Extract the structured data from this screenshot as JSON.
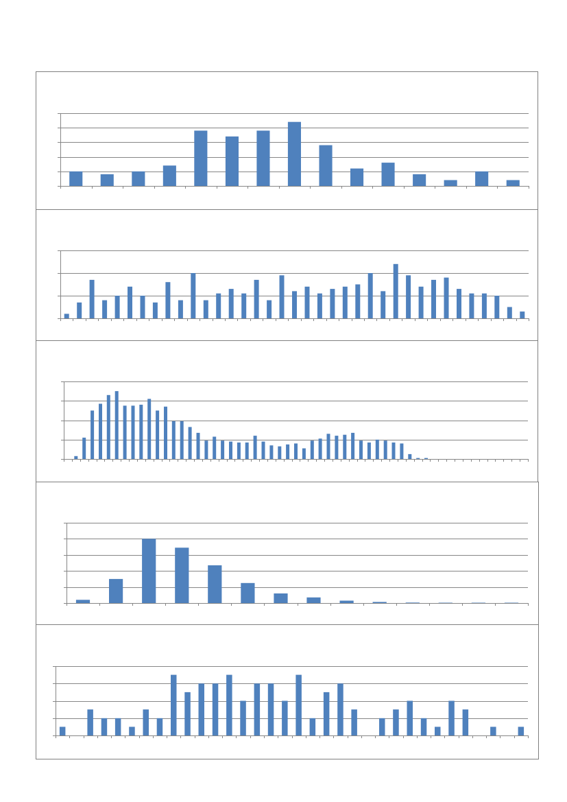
{
  "colors": {
    "bar": "#4f81bd",
    "grid": "#868686",
    "frame": "#7f7f7f",
    "background": "#ffffff"
  },
  "chart_data": [
    {
      "type": "bar",
      "title": "",
      "xlabel": "",
      "ylabel": "",
      "grid": true,
      "legend": "none",
      "tick_labels": "none",
      "ylim": [
        0,
        5
      ],
      "values": [
        1,
        0.8,
        1,
        1.4,
        3.8,
        3.4,
        3.8,
        4.4,
        2.8,
        1.2,
        1.6,
        0.8,
        0.4,
        1,
        0.4
      ]
    },
    {
      "type": "bar",
      "title": "",
      "xlabel": "",
      "ylabel": "",
      "grid": true,
      "legend": "none",
      "tick_labels": "none",
      "ylim": [
        0,
        3
      ],
      "values": [
        0.2,
        0.7,
        1.7,
        0.8,
        1,
        1.4,
        1,
        0.7,
        1.6,
        0.8,
        2,
        0.8,
        1.1,
        1.3,
        1.1,
        1.7,
        0.8,
        1.9,
        1.2,
        1.4,
        1.1,
        1.3,
        1.4,
        1.5,
        2,
        1.2,
        2.4,
        1.9,
        1.4,
        1.7,
        1.8,
        1.3,
        1.1,
        1.1,
        1,
        0.5,
        0.3
      ]
    },
    {
      "type": "bar",
      "title": "",
      "xlabel": "",
      "ylabel": "",
      "grid": true,
      "legend": "none",
      "tick_labels": "none",
      "ylim": [
        0,
        4
      ],
      "values": [
        0,
        0.15,
        1.1,
        2.5,
        2.85,
        3.3,
        3.5,
        2.75,
        2.75,
        2.8,
        3.1,
        2.5,
        2.7,
        1.95,
        1.95,
        1.65,
        1.35,
        0.95,
        1.15,
        0.95,
        0.9,
        0.85,
        0.85,
        1.2,
        0.9,
        0.7,
        0.65,
        0.75,
        0.8,
        0.55,
        0.95,
        1.05,
        1.3,
        1.2,
        1.25,
        1.35,
        0.95,
        0.85,
        1,
        0.95,
        0.85,
        0.8,
        0.25,
        0.05,
        0.05,
        0,
        0,
        0,
        0,
        0,
        0,
        0,
        0,
        0,
        0,
        0,
        0
      ]
    },
    {
      "type": "bar",
      "title": "",
      "xlabel": "",
      "ylabel": "",
      "grid": true,
      "legend": "none",
      "tick_labels": "none",
      "ylim": [
        0,
        5
      ],
      "values": [
        0.2,
        1.5,
        4,
        3.45,
        2.35,
        1.25,
        0.6,
        0.35,
        0.15,
        0.07,
        0.03,
        0.02,
        0.02,
        0.02
      ]
    },
    {
      "type": "bar",
      "title": "",
      "xlabel": "",
      "ylabel": "",
      "grid": true,
      "legend": "none",
      "tick_labels": "none",
      "ylim": [
        0,
        4
      ],
      "values": [
        0.5,
        0,
        1.5,
        1,
        1,
        0.5,
        1.5,
        1,
        3.5,
        2.5,
        3,
        3,
        3.5,
        2,
        3,
        3,
        2,
        3.5,
        1,
        2.5,
        3,
        1.5,
        0,
        1,
        1.5,
        2,
        1,
        0.5,
        2,
        1.5,
        0,
        0.5,
        0,
        0.5
      ]
    }
  ]
}
